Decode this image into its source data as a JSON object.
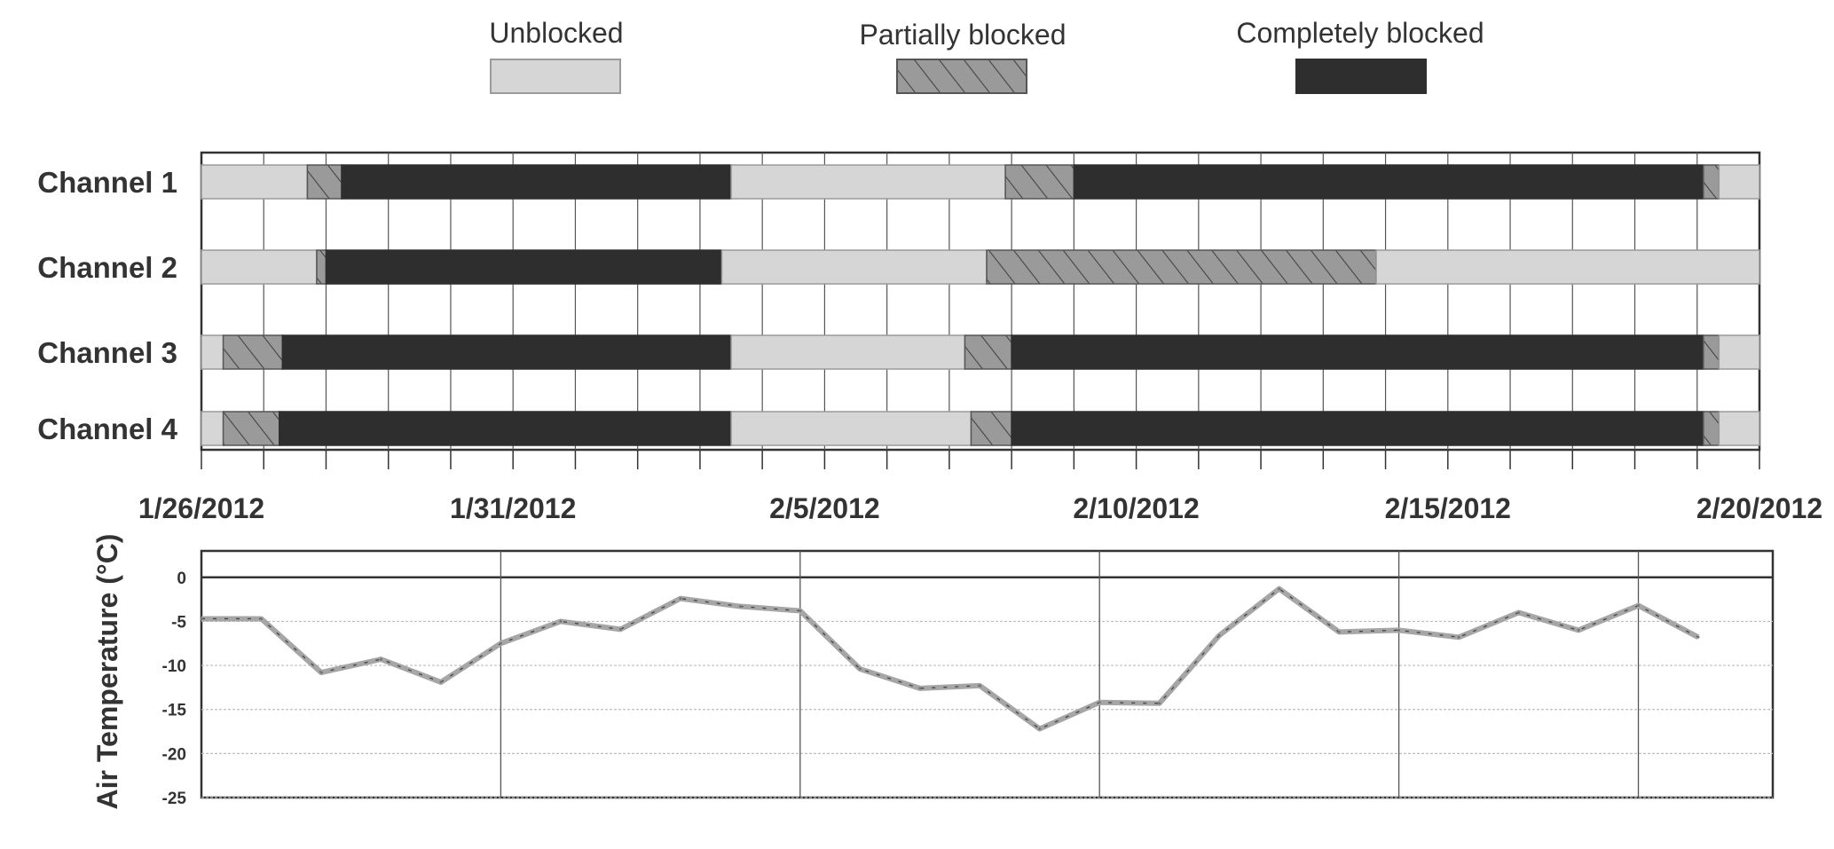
{
  "chart_data": [
    {
      "type": "timeline",
      "legend": [
        {
          "label": "Unblocked",
          "state": "unblocked",
          "color": "#d6d6d6"
        },
        {
          "label": "Partially blocked",
          "state": "partial",
          "color": "#9a9a9a"
        },
        {
          "label": "Completely blocked",
          "state": "complete",
          "color": "#2e2e2e"
        }
      ],
      "x_range_days": [
        0,
        25
      ],
      "x_ticks": [
        {
          "day": 0,
          "label": "1/26/2012"
        },
        {
          "day": 5,
          "label": "1/31/2012"
        },
        {
          "day": 10,
          "label": "2/5/2012"
        },
        {
          "day": 15,
          "label": "2/10/2012"
        },
        {
          "day": 20,
          "label": "2/15/2012"
        },
        {
          "day": 25,
          "label": "2/20/2012"
        }
      ],
      "channels": [
        {
          "name": "Channel 1",
          "segments": [
            {
              "start": 0.0,
              "end": 1.7,
              "state": "unblocked"
            },
            {
              "start": 1.7,
              "end": 2.25,
              "state": "partial"
            },
            {
              "start": 2.25,
              "end": 8.5,
              "state": "complete"
            },
            {
              "start": 8.5,
              "end": 12.9,
              "state": "unblocked"
            },
            {
              "start": 12.9,
              "end": 14.0,
              "state": "partial"
            },
            {
              "start": 14.0,
              "end": 24.1,
              "state": "complete"
            },
            {
              "start": 24.1,
              "end": 24.35,
              "state": "partial"
            },
            {
              "start": 24.35,
              "end": 25.0,
              "state": "unblocked"
            }
          ]
        },
        {
          "name": "Channel 2",
          "segments": [
            {
              "start": 0.0,
              "end": 1.85,
              "state": "unblocked"
            },
            {
              "start": 1.85,
              "end": 2.0,
              "state": "partial"
            },
            {
              "start": 2.0,
              "end": 8.35,
              "state": "complete"
            },
            {
              "start": 8.35,
              "end": 12.6,
              "state": "unblocked"
            },
            {
              "start": 12.6,
              "end": 18.85,
              "state": "partial"
            },
            {
              "start": 18.85,
              "end": 25.0,
              "state": "unblocked"
            }
          ]
        },
        {
          "name": "Channel 3",
          "segments": [
            {
              "start": 0.0,
              "end": 0.35,
              "state": "unblocked"
            },
            {
              "start": 0.35,
              "end": 1.3,
              "state": "partial"
            },
            {
              "start": 1.3,
              "end": 8.5,
              "state": "complete"
            },
            {
              "start": 8.5,
              "end": 12.25,
              "state": "unblocked"
            },
            {
              "start": 12.25,
              "end": 13.0,
              "state": "partial"
            },
            {
              "start": 13.0,
              "end": 24.1,
              "state": "complete"
            },
            {
              "start": 24.1,
              "end": 24.35,
              "state": "partial"
            },
            {
              "start": 24.35,
              "end": 25.0,
              "state": "unblocked"
            }
          ]
        },
        {
          "name": "Channel 4",
          "segments": [
            {
              "start": 0.0,
              "end": 0.35,
              "state": "unblocked"
            },
            {
              "start": 0.35,
              "end": 1.25,
              "state": "partial"
            },
            {
              "start": 1.25,
              "end": 8.5,
              "state": "complete"
            },
            {
              "start": 8.5,
              "end": 12.35,
              "state": "unblocked"
            },
            {
              "start": 12.35,
              "end": 13.0,
              "state": "partial"
            },
            {
              "start": 13.0,
              "end": 24.1,
              "state": "complete"
            },
            {
              "start": 24.1,
              "end": 24.35,
              "state": "partial"
            },
            {
              "start": 24.35,
              "end": 25.0,
              "state": "unblocked"
            }
          ]
        }
      ]
    },
    {
      "type": "line",
      "ylabel": "Air Temperature (°C)",
      "ylim": [
        -25,
        3
      ],
      "y_ticks": [
        0,
        -5,
        -10,
        -15,
        -20,
        -25
      ],
      "x_range_days": [
        0,
        25
      ],
      "series": [
        {
          "color": "#a6a6a6",
          "x": [
            0,
            1,
            2,
            3,
            4,
            5,
            6,
            7,
            8,
            9,
            10,
            11,
            12,
            13,
            14,
            15,
            16,
            17,
            18,
            19,
            20,
            21,
            22,
            23,
            24,
            25
          ],
          "y": [
            -4.7,
            -4.7,
            -10.8,
            -9.3,
            -11.9,
            -7.5,
            -5.0,
            -5.9,
            -2.4,
            -3.3,
            -3.8,
            -10.4,
            -12.6,
            -12.3,
            -17.2,
            -14.2,
            -14.3,
            -6.6,
            -1.3,
            -6.2,
            -6.0,
            -6.8,
            -4.0,
            -6.0,
            -3.2,
            -6.8
          ]
        }
      ]
    }
  ]
}
